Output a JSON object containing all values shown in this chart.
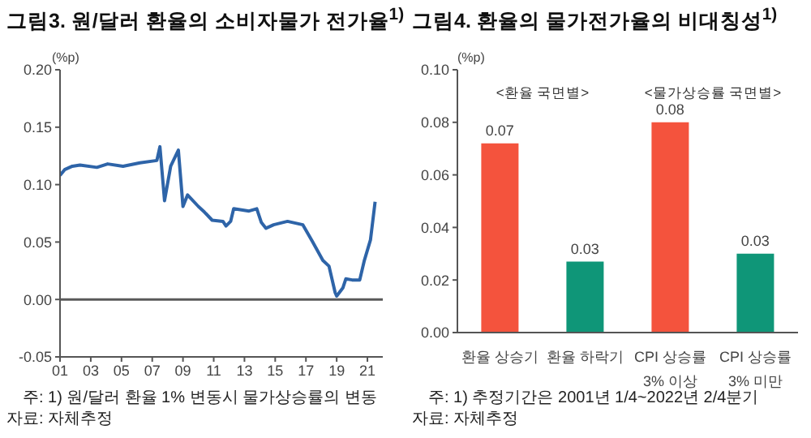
{
  "chart_data": [
    {
      "type": "line",
      "title": "그림3. 원/달러 환율의 소비자물가 전가율$^{1)}$",
      "ylabel": "(%p)",
      "x": [
        2001.0,
        2001.3,
        2001.8,
        2002.3,
        2003.4,
        2004.1,
        2005.1,
        2006.2,
        2007.3,
        2007.5,
        2007.8,
        2008.2,
        2008.7,
        2009.0,
        2009.3,
        2010.0,
        2010.4,
        2010.9,
        2011.6,
        2011.8,
        2012.1,
        2012.3,
        2013.3,
        2013.8,
        2014.1,
        2014.4,
        2014.9,
        2015.8,
        2016.8,
        2017.4,
        2018.1,
        2018.5,
        2018.9,
        2019.0,
        2019.4,
        2019.6,
        2020.0,
        2020.5,
        2020.8,
        2021.2,
        2021.5
      ],
      "series": [
        {
          "color": "#2e64a8",
          "values": [
            0.108,
            0.113,
            0.116,
            0.117,
            0.115,
            0.118,
            0.116,
            0.119,
            0.121,
            0.133,
            0.086,
            0.116,
            0.13,
            0.081,
            0.091,
            0.081,
            0.076,
            0.069,
            0.068,
            0.064,
            0.068,
            0.079,
            0.077,
            0.079,
            0.067,
            0.062,
            0.065,
            0.068,
            0.065,
            0.051,
            0.034,
            0.029,
            0.006,
            0.003,
            0.01,
            0.018,
            0.017,
            0.017,
            0.034,
            0.052,
            0.085
          ]
        }
      ],
      "xlim": [
        2001,
        2022.0
      ],
      "xticks": [
        {
          "value": 2001,
          "label": "01"
        },
        {
          "value": 2003,
          "label": "03"
        },
        {
          "value": 2005,
          "label": "05"
        },
        {
          "value": 2007,
          "label": "07"
        },
        {
          "value": 2009,
          "label": "09"
        },
        {
          "value": 2011,
          "label": "11"
        },
        {
          "value": 2013,
          "label": "13"
        },
        {
          "value": 2015,
          "label": "15"
        },
        {
          "value": 2017,
          "label": "17"
        },
        {
          "value": 2019,
          "label": "19"
        },
        {
          "value": 2021,
          "label": "21"
        }
      ],
      "ylim": [
        -0.05,
        0.2
      ],
      "yticks": [
        {
          "value": -0.05,
          "label": "-0.05"
        },
        {
          "value": 0,
          "label": "0.00"
        },
        {
          "value": 0.05,
          "label": "0.05"
        },
        {
          "value": 0.1,
          "label": "0.10"
        },
        {
          "value": 0.15,
          "label": "0.15"
        },
        {
          "value": 0.2,
          "label": "0.20"
        }
      ],
      "ref_lines": [
        {
          "axis": "y",
          "value": 0,
          "color": "#595959"
        }
      ],
      "marker": "none",
      "line_style": "solid",
      "annotations": [
        "주: 1) 원/달러 환율 1% 변동시 물가상승률의 변동",
        "자료: 자체추정"
      ]
    },
    {
      "type": "bar",
      "title": "그림4. 환율의 물가전가율의 비대칭성$^{1)}$",
      "ylabel": "(%p)",
      "categories": [
        "환율 상승기",
        "환율 하락기",
        "CPI 상승률\n3% 이상",
        "CPI 상승률\n3% 미만"
      ],
      "values": [
        0.072,
        0.027,
        0.08,
        0.03
      ],
      "colors": [
        "#f4533d",
        "#0f9678",
        "#f4533d",
        "#0f9678"
      ],
      "value_labels": [
        "0.07",
        "0.03",
        "0.08",
        "0.03"
      ],
      "ylim": [
        0,
        0.1
      ],
      "yticks": [
        {
          "value": 0,
          "label": "0.00"
        },
        {
          "value": 0.02,
          "label": "0.02"
        },
        {
          "value": 0.04,
          "label": "0.04"
        },
        {
          "value": 0.06,
          "label": "0.06"
        },
        {
          "value": 0.08,
          "label": "0.08"
        },
        {
          "value": 0.1,
          "label": "0.10"
        }
      ],
      "annotations": [
        "<환율 국면별>",
        "<물가상승률 국면별>",
        "주: 1) 추정기간은 2001년 1/4~2022년 2/4분기",
        "자료: 자체추정"
      ]
    }
  ]
}
